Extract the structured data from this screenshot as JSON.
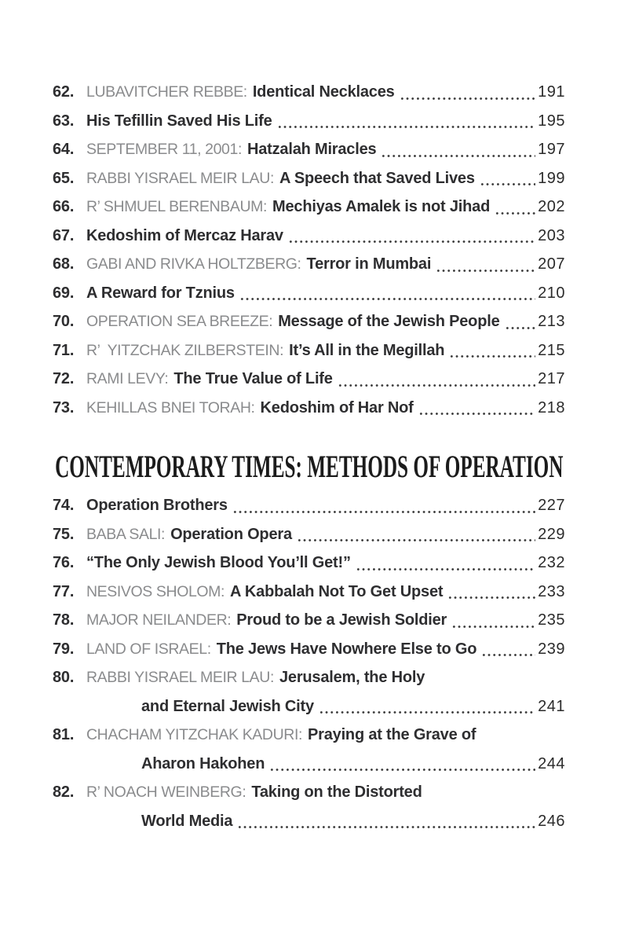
{
  "colors": {
    "background": "#ffffff",
    "prefix": "#8a8b8d",
    "title": "#2e2e30",
    "page_number": "#2b2b2b",
    "dots": "#3d3d3d",
    "header": "#1b1b1b"
  },
  "toc": {
    "section_header": "CONTEMPORARY TIMES: METHODS OF OPERATION",
    "first_entries": [
      {
        "number": "62.",
        "prefix": "LUBAVITCHER REBBE:",
        "title": "Identical Necklaces",
        "title_line2": null,
        "page": "191"
      },
      {
        "number": "63.",
        "prefix": null,
        "title": "His Tefillin Saved His Life",
        "title_line2": null,
        "page": "195"
      },
      {
        "number": "64.",
        "prefix": "SEPTEMBER 11, 2001:",
        "title": "Hatzalah Miracles",
        "title_line2": null,
        "page": "197"
      },
      {
        "number": "65.",
        "prefix": "RABBI YISRAEL MEIR LAU:",
        "title": "A Speech that Saved Lives",
        "title_line2": null,
        "page": "199"
      },
      {
        "number": "66.",
        "prefix": "R’ SHMUEL BERENBAUM:",
        "title": "Mechiyas Amalek is not Jihad",
        "title_line2": null,
        "page": "202"
      },
      {
        "number": "67.",
        "prefix": null,
        "title": "Kedoshim of Mercaz Harav",
        "title_line2": null,
        "page": "203"
      },
      {
        "number": "68.",
        "prefix": "GABI AND RIVKA HOLTZBERG:",
        "title": "Terror in Mumbai",
        "title_line2": null,
        "page": "207"
      },
      {
        "number": "69.",
        "prefix": null,
        "title": "A Reward for Tznius",
        "title_line2": null,
        "page": "210"
      },
      {
        "number": "70.",
        "prefix": "OPERATION SEA BREEZE:",
        "title": "Message of the Jewish People",
        "title_line2": null,
        "page": "213"
      },
      {
        "number": "71.",
        "prefix": "R’  YITZCHAK ZILBERSTEIN:",
        "title": "It’s All in the Megillah",
        "title_line2": null,
        "page": "215"
      },
      {
        "number": "72.",
        "prefix": "RAMI LEVY:",
        "title": "The True Value of Life",
        "title_line2": null,
        "page": "217"
      },
      {
        "number": "73.",
        "prefix": "KEHILLAS BNEI TORAH:",
        "title": "Kedoshim of Har Nof",
        "title_line2": null,
        "page": "218"
      }
    ],
    "second_entries": [
      {
        "number": "74.",
        "prefix": null,
        "title": "Operation Brothers",
        "title_line2": null,
        "page": "227"
      },
      {
        "number": "75.",
        "prefix": "BABA SALI:",
        "title": "Operation Opera",
        "title_line2": null,
        "page": "229"
      },
      {
        "number": "76.",
        "prefix": null,
        "title": "“The Only Jewish Blood You’ll Get!”",
        "title_line2": null,
        "page": "232"
      },
      {
        "number": "77.",
        "prefix": "NESIVOS SHOLOM:",
        "title": "A Kabbalah Not To Get Upset",
        "title_line2": null,
        "page": "233"
      },
      {
        "number": "78.",
        "prefix": "MAJOR NEILANDER:",
        "title": "Proud to be a Jewish Soldier",
        "title_line2": null,
        "page": "235"
      },
      {
        "number": "79.",
        "prefix": "LAND OF ISRAEL:",
        "title": "The Jews Have Nowhere Else to Go",
        "title_line2": null,
        "page": "239"
      },
      {
        "number": "80.",
        "prefix": "RABBI YISRAEL MEIR LAU:",
        "title": "Jerusalem, the Holy",
        "title_line2": "and Eternal Jewish City",
        "page": "241"
      },
      {
        "number": "81.",
        "prefix": "CHACHAM YITZCHAK KADURI:",
        "title": "Praying at the Grave of",
        "title_line2": "Aharon Hakohen",
        "page": "244"
      },
      {
        "number": "82.",
        "prefix": "R’ NOACH WEINBERG:",
        "title": "Taking on the Distorted",
        "title_line2": "World Media",
        "page": "246"
      }
    ]
  }
}
